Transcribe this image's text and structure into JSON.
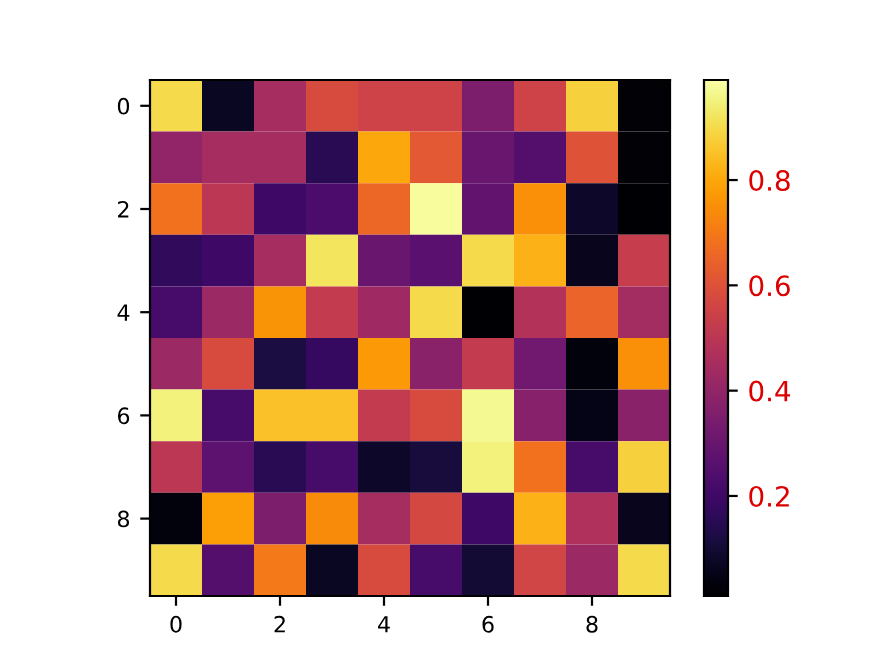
{
  "chart_data": {
    "type": "heatmap",
    "categories": [
      "0",
      null,
      "2",
      null,
      "4",
      null,
      "6",
      null,
      "8",
      null
    ],
    "y_categories": [
      "0",
      null,
      "2",
      null,
      "4",
      null,
      "6",
      null,
      "8",
      null
    ],
    "cells": [
      [
        0.9,
        0.07,
        0.45,
        0.58,
        0.55,
        0.55,
        0.35,
        0.55,
        0.88,
        0.02
      ],
      [
        0.4,
        0.45,
        0.45,
        0.15,
        0.8,
        0.62,
        0.3,
        0.25,
        0.6,
        0.02
      ],
      [
        0.68,
        0.5,
        0.2,
        0.23,
        0.66,
        0.98,
        0.28,
        0.75,
        0.08,
        0.01
      ],
      [
        0.17,
        0.2,
        0.45,
        0.92,
        0.3,
        0.26,
        0.9,
        0.82,
        0.06,
        0.53
      ],
      [
        0.22,
        0.42,
        0.76,
        0.52,
        0.43,
        0.9,
        0.01,
        0.48,
        0.65,
        0.44
      ],
      [
        0.42,
        0.58,
        0.12,
        0.18,
        0.77,
        0.38,
        0.52,
        0.32,
        0.03,
        0.75
      ],
      [
        0.95,
        0.22,
        0.85,
        0.85,
        0.52,
        0.58,
        0.97,
        0.37,
        0.05,
        0.38
      ],
      [
        0.5,
        0.27,
        0.15,
        0.22,
        0.08,
        0.11,
        0.95,
        0.68,
        0.22,
        0.88
      ],
      [
        0.03,
        0.78,
        0.35,
        0.74,
        0.45,
        0.57,
        0.2,
        0.82,
        0.47,
        0.06
      ],
      [
        0.9,
        0.25,
        0.7,
        0.07,
        0.58,
        0.22,
        0.1,
        0.56,
        0.42,
        0.9
      ]
    ],
    "clim": [
      0.01,
      0.99
    ],
    "cticks": [
      0.2,
      0.4,
      0.6,
      0.8
    ]
  }
}
